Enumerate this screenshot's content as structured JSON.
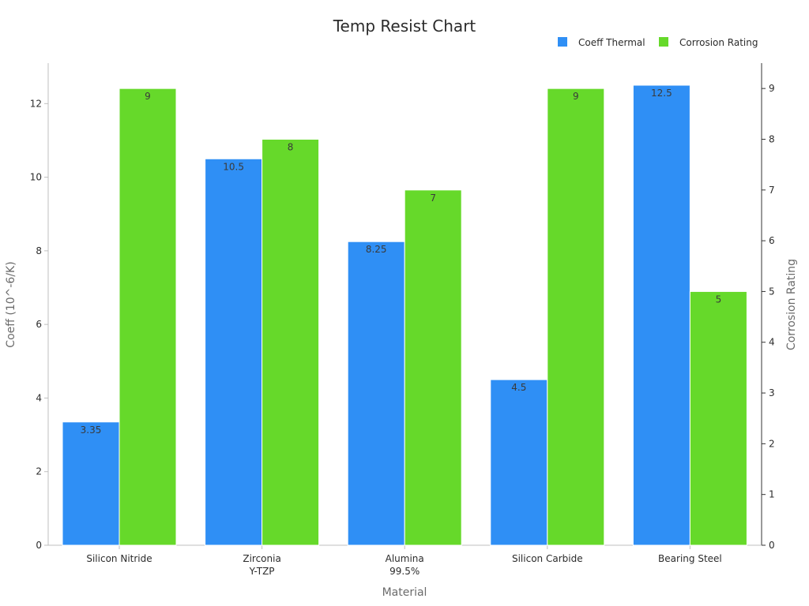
{
  "chart_data": {
    "type": "bar",
    "title": "Temp Resist Chart",
    "xlabel": "Material",
    "ylabel_left": "Coeff (10^-6/K)",
    "ylabel_right": "Corrosion Rating",
    "categories": [
      [
        "Silicon Nitride"
      ],
      [
        "Zirconia",
        "Y-TZP"
      ],
      [
        "Alumina",
        "99.5%"
      ],
      [
        "Silicon Carbide"
      ],
      [
        "Bearing Steel"
      ]
    ],
    "series": [
      {
        "name": "Coeff Thermal",
        "axis": "left",
        "color": "#2f8ff5",
        "values": [
          3.35,
          10.5,
          8.25,
          4.5,
          12.5
        ]
      },
      {
        "name": "Corrosion Rating",
        "axis": "right",
        "color": "#66d92a",
        "values": [
          9,
          8,
          7,
          9,
          5
        ]
      }
    ],
    "ylim_left": [
      0,
      13.1
    ],
    "ylim_right": [
      0,
      9.5
    ],
    "yticks_left": [
      0,
      2,
      4,
      6,
      8,
      10,
      12
    ],
    "yticks_right": [
      0,
      1,
      2,
      3,
      4,
      5,
      6,
      7,
      8,
      9
    ],
    "legend_position": "top-right",
    "grid": false
  }
}
